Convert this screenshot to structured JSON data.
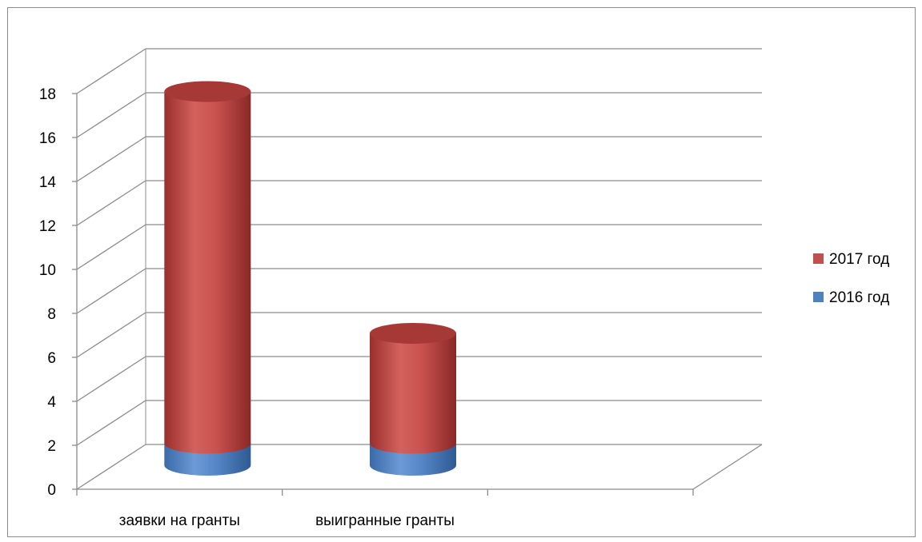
{
  "chart_data": {
    "type": "bar",
    "subtype": "stacked-3d-cylinder",
    "categories": [
      "заявки на гранты",
      "выигранные гранты"
    ],
    "series": [
      {
        "name": "2016 год",
        "values": [
          1,
          1
        ],
        "color": "#4f81bd"
      },
      {
        "name": "2017 год",
        "values": [
          16,
          5
        ],
        "color": "#c0504d"
      }
    ],
    "ylim": [
      0,
      18
    ],
    "yticks": [
      "0",
      "2",
      "4",
      "6",
      "8",
      "10",
      "12",
      "14",
      "16",
      "18"
    ],
    "grid": true,
    "legend": "right",
    "legend_order": [
      "2017 год",
      "2016 год"
    ]
  }
}
